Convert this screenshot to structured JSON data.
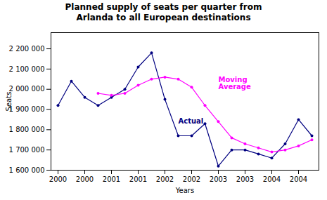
{
  "chart_data": {
    "type": "line",
    "title": "Planned supply of seats per quarter from\nArlanda to all European destinations",
    "xlabel": "Years",
    "ylabel": "Seats",
    "categories": [
      "2000",
      null,
      "2000",
      null,
      "2001",
      null,
      "2001",
      null,
      "2002",
      null,
      "2002",
      null,
      "2003",
      null,
      "2003",
      null,
      "2004",
      null,
      "2004",
      null
    ],
    "series": [
      {
        "color": "#000080",
        "marker": "circle",
        "line_style": "solid",
        "values": [
          1920000,
          2040000,
          1960000,
          1920000,
          1960000,
          2000000,
          2110000,
          2180000,
          1950000,
          1770000,
          1770000,
          1830000,
          1620000,
          1700000,
          1700000,
          1680000,
          1660000,
          1730000,
          1850000,
          1770000
        ]
      },
      {
        "color": "#FF00FF",
        "marker": "circle",
        "line_style": "solid",
        "values": [
          null,
          null,
          null,
          1980000,
          1970000,
          1980000,
          2020000,
          2050000,
          2060000,
          2050000,
          2010000,
          1920000,
          1840000,
          1760000,
          1730000,
          1710000,
          1690000,
          1700000,
          1720000,
          1750000
        ]
      }
    ],
    "ylim": [
      1600000,
      2280000
    ],
    "yticks": [
      {
        "value": 1600000,
        "label": "1 600 000"
      },
      {
        "value": 1700000,
        "label": "1 700 000"
      },
      {
        "value": 1800000,
        "label": "1 800 000"
      },
      {
        "value": 1900000,
        "label": "1 900 000"
      },
      {
        "value": 2000000,
        "label": "2 000 000"
      },
      {
        "value": 2100000,
        "label": "2 100 000"
      },
      {
        "value": 2200000,
        "label": "2 200 000"
      }
    ],
    "grid": false,
    "annotations": [
      {
        "text": "Actual",
        "x": 9,
        "y": 1830000,
        "color": "#000080"
      },
      {
        "text": "Moving\nAverage",
        "x": 12,
        "y": 2000000,
        "color": "#FF00FF"
      }
    ]
  }
}
